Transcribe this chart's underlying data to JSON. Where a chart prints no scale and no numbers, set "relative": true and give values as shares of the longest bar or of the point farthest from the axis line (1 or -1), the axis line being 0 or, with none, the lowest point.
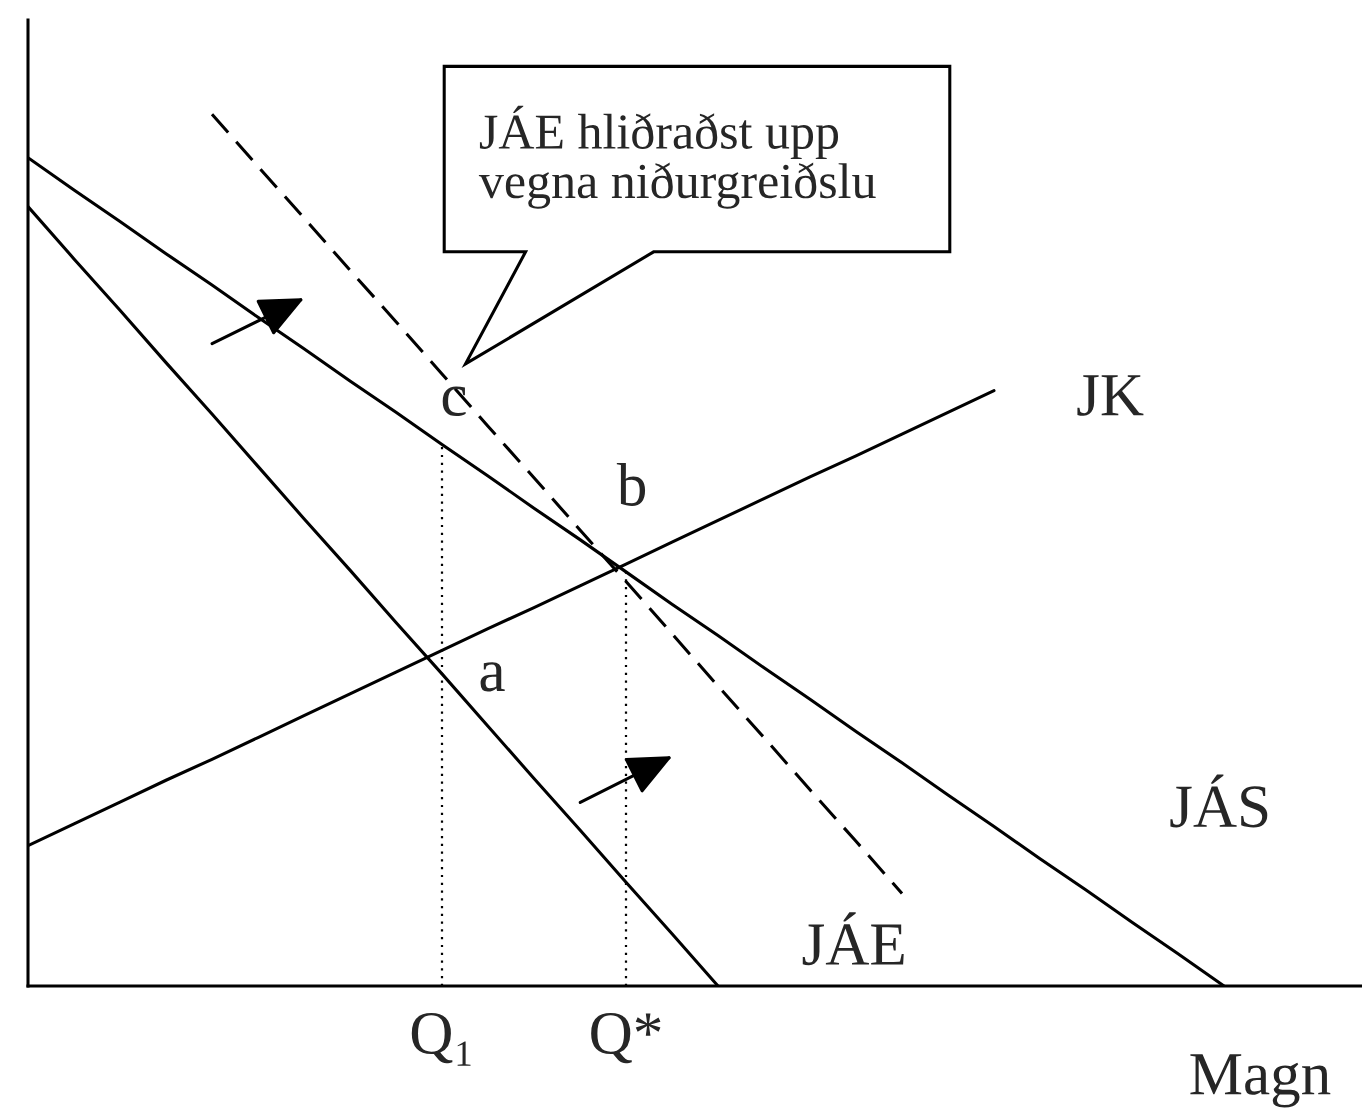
{
  "chart_data": {
    "type": "line",
    "relative": true,
    "xlabel": "Magn",
    "tick_labels": "x",
    "legend": false,
    "marker": "none",
    "categories": [
      null,
      null,
      null,
      null,
      null,
      null,
      null,
      null,
      null,
      "Q₁",
      null,
      null,
      null,
      "Q*",
      null,
      null,
      null,
      null,
      null,
      null,
      null,
      null,
      null,
      null,
      null,
      null,
      null,
      null,
      null,
      null
    ],
    "series": [
      {
        "name": "JÁS",
        "color": "#000000",
        "values": [
          0.95,
          0.913,
          0.877,
          0.84,
          0.804,
          0.767,
          0.731,
          0.694,
          0.658,
          0.621,
          0.585,
          0.548,
          0.512,
          0.475,
          0.438,
          0.402,
          0.365,
          0.329,
          0.292,
          0.256,
          0.219,
          0.183,
          0.146,
          0.11,
          0.073,
          0.037,
          0,
          null,
          null,
          null
        ]
      },
      {
        "name": "JÁE",
        "color": "#000000",
        "values": [
          0.894,
          0.834,
          0.775,
          0.715,
          0.656,
          0.596,
          0.536,
          0.477,
          0.417,
          0.358,
          0.298,
          0.238,
          0.179,
          0.119,
          0.06,
          0,
          null,
          null,
          null,
          null,
          null,
          null,
          null,
          null,
          null,
          null,
          null,
          null,
          null,
          null
        ]
      },
      {
        "color": "#000000",
        "line_style": "dashed",
        "values": [
          null,
          null,
          null,
          null,
          1,
          0.94,
          0.881,
          0.821,
          0.762,
          0.702,
          0.642,
          0.583,
          0.523,
          0.464,
          0.404,
          0.344,
          0.285,
          0.225,
          0.166,
          0.106,
          null,
          null,
          null,
          null,
          null,
          null,
          null,
          null,
          null,
          null
        ]
      },
      {
        "name": "JK",
        "color": "#000000",
        "values": [
          0.161,
          0.186,
          0.211,
          0.236,
          0.26,
          0.285,
          0.31,
          0.335,
          0.36,
          0.385,
          0.41,
          0.434,
          0.459,
          0.484,
          0.509,
          0.534,
          0.559,
          0.584,
          0.608,
          0.633,
          0.658,
          0.683,
          null,
          null,
          null,
          null,
          null,
          null,
          null,
          null
        ]
      },
      {
        "color": "#000000",
        "line_style": "dotted",
        "x": [
          "Q₁",
          "Q₁"
        ],
        "values": [
          0,
          0.621
        ]
      },
      {
        "color": "#000000",
        "line_style": "dotted",
        "x": [
          "Q*",
          "Q*"
        ],
        "values": [
          0,
          0.479
        ]
      }
    ],
    "annotations": [
      "JÁE hliðraðst upp\nvegna niðurgreiðslu",
      {
        "text": "c",
        "x": "Q₁",
        "y": 0.621
      },
      {
        "text": "b",
        "x": "Q*",
        "y": 0.479
      },
      {
        "text": "a",
        "x": "Q₁",
        "y": 0.376
      }
    ]
  }
}
